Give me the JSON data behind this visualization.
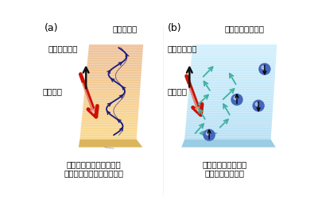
{
  "bg_color": "#ffffff",
  "panel_a": {
    "label": "(a)",
    "subtitle": "（絶縁体）",
    "spin_dir_label": "スピンの向き",
    "spin_flow_label": "スピン流",
    "caption_line1": "スピンの波（マグノン）",
    "caption_line2": "によって運ばれるスピン流",
    "slab_color": "#f5d888",
    "slab_bottom_color": "#e8c060",
    "slab_edge_color": "#d4a840"
  },
  "panel_b": {
    "label": "(b)",
    "subtitle": "（金属・半導体）",
    "spin_dir_label": "スピンの向き",
    "spin_flow_label": "スピン流",
    "caption_line1": "電子の運動によって",
    "caption_line2": "運ばれるスピン流",
    "slab_color": "#b0dcf0",
    "slab_bottom_color": "#80c0e0",
    "slab_edge_color": "#60a8d0"
  },
  "red_arrow_color": "#cc1100",
  "black_arrow_color": "#111111",
  "wave_color": "#1a1a7a",
  "zigzag_color": "#40b0a0",
  "electron_color": "#4466bb"
}
